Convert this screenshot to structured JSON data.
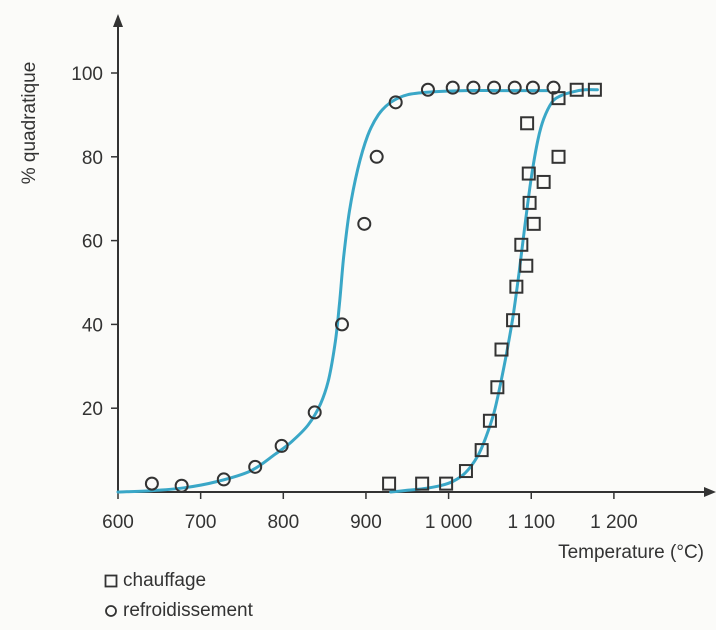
{
  "chart_data": {
    "type": "scatter",
    "title": "",
    "xlabel": "Temperature (°C)",
    "ylabel": "% quadratique",
    "xlim": [
      600,
      1300
    ],
    "ylim": [
      0,
      110
    ],
    "grid": false,
    "legend_placement": "bottom-left",
    "x_ticks": [
      600,
      700,
      800,
      900,
      1000,
      1100,
      1200
    ],
    "x_tick_labels": [
      "600",
      "700",
      "800",
      "900",
      "1 000",
      "1 100",
      "1 200"
    ],
    "y_ticks": [
      20,
      40,
      60,
      80,
      100
    ],
    "y_tick_labels": [
      "20",
      "40",
      "60",
      "80",
      "100"
    ],
    "curve_color": "#3aa7c7",
    "series": [
      {
        "name": "chauffage",
        "marker": "square",
        "points": [
          [
            928,
            2
          ],
          [
            968,
            2
          ],
          [
            997,
            2
          ],
          [
            1021,
            5
          ],
          [
            1040,
            10
          ],
          [
            1050,
            17
          ],
          [
            1059,
            25
          ],
          [
            1064,
            34
          ],
          [
            1078,
            41
          ],
          [
            1082,
            49
          ],
          [
            1088,
            59
          ],
          [
            1094,
            54
          ],
          [
            1098,
            69
          ],
          [
            1097,
            76
          ],
          [
            1103,
            64
          ],
          [
            1095,
            88
          ],
          [
            1115,
            74
          ],
          [
            1133,
            80
          ],
          [
            1133,
            94
          ],
          [
            1155,
            96
          ],
          [
            1177,
            96
          ]
        ],
        "curve": [
          [
            930,
            0
          ],
          [
            950,
            0.4
          ],
          [
            970,
            0.8
          ],
          [
            990,
            1.5
          ],
          [
            1005,
            2.5
          ],
          [
            1020,
            4.5
          ],
          [
            1035,
            8.5
          ],
          [
            1045,
            13
          ],
          [
            1055,
            19
          ],
          [
            1063,
            26
          ],
          [
            1070,
            33
          ],
          [
            1078,
            42
          ],
          [
            1085,
            52
          ],
          [
            1092,
            63
          ],
          [
            1100,
            75
          ],
          [
            1108,
            84
          ],
          [
            1115,
            89
          ],
          [
            1125,
            93
          ],
          [
            1135,
            94.5
          ],
          [
            1150,
            95.5
          ],
          [
            1165,
            96
          ],
          [
            1180,
            96
          ]
        ]
      },
      {
        "name": "refroidissement",
        "marker": "circle",
        "points": [
          [
            641,
            2
          ],
          [
            677,
            1.5
          ],
          [
            728,
            3
          ],
          [
            766,
            6
          ],
          [
            798,
            11
          ],
          [
            838,
            19
          ],
          [
            871,
            40
          ],
          [
            898,
            64
          ],
          [
            913,
            80
          ],
          [
            936,
            93
          ],
          [
            975,
            96
          ],
          [
            1005,
            96.5
          ],
          [
            1030,
            96.5
          ],
          [
            1055,
            96.5
          ],
          [
            1080,
            96.5
          ],
          [
            1102,
            96.5
          ],
          [
            1127,
            96.5
          ]
        ],
        "curve": [
          [
            600,
            0
          ],
          [
            640,
            0.3
          ],
          [
            680,
            1
          ],
          [
            720,
            2.5
          ],
          [
            760,
            5
          ],
          [
            790,
            9
          ],
          [
            810,
            12
          ],
          [
            830,
            16
          ],
          [
            845,
            21
          ],
          [
            855,
            27
          ],
          [
            863,
            36
          ],
          [
            868,
            45
          ],
          [
            873,
            56
          ],
          [
            880,
            67
          ],
          [
            890,
            77
          ],
          [
            902,
            85
          ],
          [
            915,
            90
          ],
          [
            930,
            93
          ],
          [
            950,
            94.8
          ],
          [
            980,
            95.5
          ],
          [
            1020,
            95.8
          ],
          [
            1060,
            95.8
          ],
          [
            1100,
            95.8
          ],
          [
            1120,
            95.8
          ]
        ]
      }
    ]
  }
}
